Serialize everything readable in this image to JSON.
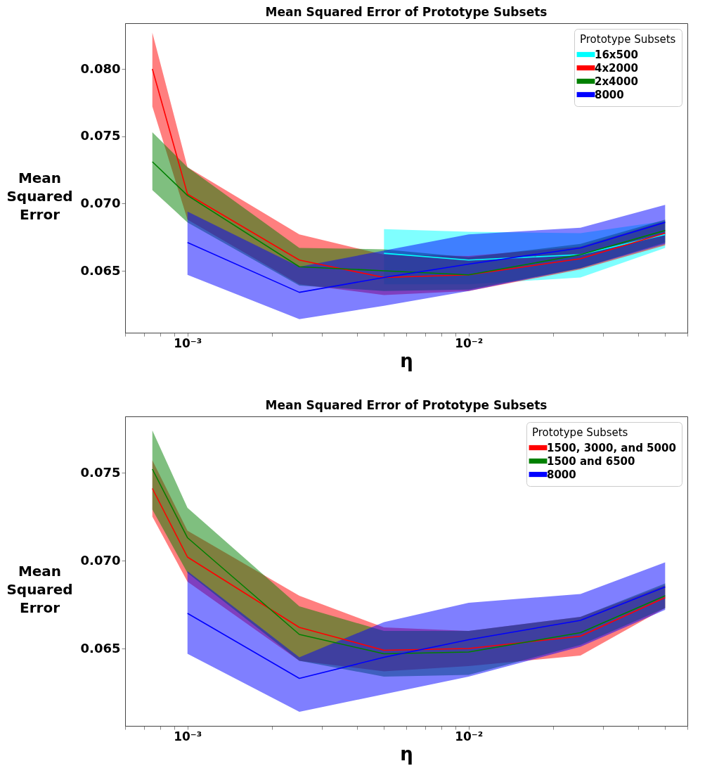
{
  "chart_data": [
    {
      "type": "line",
      "title": "Mean Squared Error of Prototype Subsets",
      "xlabel": "η",
      "ylabel": "Mean Squared Error",
      "legend_title": "Prototype Subsets",
      "legend": "top right",
      "log": "x",
      "grid": false,
      "xlim": [
        0.0006,
        0.06
      ],
      "ylim": [
        0.0604,
        0.0834
      ],
      "xticks": [
        {
          "value": 0.0006,
          "label": null
        },
        {
          "value": 0.0007,
          "label": null
        },
        {
          "value": 0.0008,
          "label": null
        },
        {
          "value": 0.0009,
          "label": null
        },
        {
          "value": 0.001,
          "label": "10⁻³"
        },
        {
          "value": 0.002,
          "label": null
        },
        {
          "value": 0.003,
          "label": null
        },
        {
          "value": 0.004,
          "label": null
        },
        {
          "value": 0.005,
          "label": null
        },
        {
          "value": 0.006,
          "label": null
        },
        {
          "value": 0.007,
          "label": null
        },
        {
          "value": 0.008,
          "label": null
        },
        {
          "value": 0.009,
          "label": null
        },
        {
          "value": 0.01,
          "label": "10⁻²"
        },
        {
          "value": 0.02,
          "label": null
        },
        {
          "value": 0.03,
          "label": null
        },
        {
          "value": 0.04,
          "label": null
        },
        {
          "value": 0.05,
          "label": null
        },
        {
          "value": 0.06,
          "label": null
        }
      ],
      "yticks": [
        {
          "value": 0.065,
          "label": "0.065"
        },
        {
          "value": 0.07,
          "label": "0.070"
        },
        {
          "value": 0.075,
          "label": "0.075"
        },
        {
          "value": 0.08,
          "label": "0.080"
        }
      ],
      "series": [
        {
          "name": "16x500",
          "color": "#00ffff",
          "x": [
            0.005,
            0.01,
            0.025,
            0.05
          ],
          "values": [
            0.0663,
            0.0658,
            0.0662,
            0.0677
          ],
          "lower": [
            0.064,
            0.064,
            0.0645,
            0.0667
          ],
          "upper": [
            0.0681,
            0.0679,
            0.0678,
            0.0687
          ]
        },
        {
          "name": "4x2000",
          "color": "#ff0000",
          "x": [
            0.00075,
            0.001,
            0.0025,
            0.005,
            0.01,
            0.025,
            0.05
          ],
          "values": [
            0.08,
            0.0707,
            0.0658,
            0.0645,
            0.0647,
            0.0659,
            0.0678
          ],
          "lower": [
            0.0772,
            0.0688,
            0.064,
            0.0632,
            0.0635,
            0.0651,
            0.0669
          ],
          "upper": [
            0.0827,
            0.0727,
            0.0677,
            0.0662,
            0.0661,
            0.0668,
            0.0687
          ]
        },
        {
          "name": "2x4000",
          "color": "#008000",
          "x": [
            0.00075,
            0.001,
            0.0025,
            0.005,
            0.01,
            0.025,
            0.05
          ],
          "values": [
            0.0731,
            0.0706,
            0.0653,
            0.065,
            0.0647,
            0.0662,
            0.068
          ],
          "lower": [
            0.071,
            0.0686,
            0.0639,
            0.0635,
            0.0636,
            0.0652,
            0.0671
          ],
          "upper": [
            0.0753,
            0.0727,
            0.0667,
            0.0666,
            0.066,
            0.067,
            0.0688
          ]
        },
        {
          "name": "8000",
          "color": "#0000ff",
          "x": [
            0.001,
            0.0025,
            0.005,
            0.01,
            0.025,
            0.05
          ],
          "values": [
            0.0671,
            0.0634,
            0.0645,
            0.0655,
            0.0667,
            0.0686
          ],
          "lower": [
            0.0647,
            0.0614,
            0.0624,
            0.0635,
            0.0652,
            0.067
          ],
          "upper": [
            0.0694,
            0.0653,
            0.0665,
            0.0677,
            0.0682,
            0.0699
          ]
        }
      ]
    },
    {
      "type": "line",
      "title": "Mean Squared Error of Prototype Subsets",
      "xlabel": "η",
      "ylabel": "Mean Squared Error",
      "legend_title": "Prototype Subsets",
      "legend": "top right",
      "log": "x",
      "grid": false,
      "xlim": [
        0.0006,
        0.06
      ],
      "ylim": [
        0.0606,
        0.0782
      ],
      "xticks": [
        {
          "value": 0.0006,
          "label": null
        },
        {
          "value": 0.0007,
          "label": null
        },
        {
          "value": 0.0008,
          "label": null
        },
        {
          "value": 0.0009,
          "label": null
        },
        {
          "value": 0.001,
          "label": "10⁻³"
        },
        {
          "value": 0.002,
          "label": null
        },
        {
          "value": 0.003,
          "label": null
        },
        {
          "value": 0.004,
          "label": null
        },
        {
          "value": 0.005,
          "label": null
        },
        {
          "value": 0.006,
          "label": null
        },
        {
          "value": 0.007,
          "label": null
        },
        {
          "value": 0.008,
          "label": null
        },
        {
          "value": 0.009,
          "label": null
        },
        {
          "value": 0.01,
          "label": "10⁻²"
        },
        {
          "value": 0.02,
          "label": null
        },
        {
          "value": 0.03,
          "label": null
        },
        {
          "value": 0.04,
          "label": null
        },
        {
          "value": 0.05,
          "label": null
        },
        {
          "value": 0.06,
          "label": null
        }
      ],
      "yticks": [
        {
          "value": 0.065,
          "label": "0.065"
        },
        {
          "value": 0.07,
          "label": "0.070"
        },
        {
          "value": 0.075,
          "label": "0.075"
        }
      ],
      "series": [
        {
          "name": "1500, 3000, and 5000",
          "color": "#ff0000",
          "x": [
            0.00075,
            0.001,
            0.0025,
            0.005,
            0.01,
            0.025,
            0.05
          ],
          "values": [
            0.0741,
            0.0702,
            0.0662,
            0.0649,
            0.065,
            0.0657,
            0.0679
          ],
          "lower": [
            0.0725,
            0.0688,
            0.0643,
            0.0637,
            0.064,
            0.0646,
            0.0673
          ],
          "upper": [
            0.0757,
            0.0717,
            0.068,
            0.0662,
            0.066,
            0.0668,
            0.0686
          ]
        },
        {
          "name": "1500 and 6500",
          "color": "#008000",
          "x": [
            0.00075,
            0.001,
            0.0025,
            0.005,
            0.01,
            0.025,
            0.05
          ],
          "values": [
            0.0752,
            0.0713,
            0.0658,
            0.0647,
            0.0648,
            0.0659,
            0.068
          ],
          "lower": [
            0.0729,
            0.0693,
            0.0643,
            0.0634,
            0.0635,
            0.0652,
            0.0673
          ],
          "upper": [
            0.0774,
            0.073,
            0.0674,
            0.066,
            0.066,
            0.0668,
            0.0687
          ]
        },
        {
          "name": "8000",
          "color": "#0000ff",
          "x": [
            0.001,
            0.0025,
            0.005,
            0.01,
            0.025,
            0.05
          ],
          "values": [
            0.067,
            0.0633,
            0.0645,
            0.0655,
            0.0666,
            0.0685
          ],
          "lower": [
            0.0647,
            0.0614,
            0.0624,
            0.0634,
            0.0651,
            0.0672
          ],
          "upper": [
            0.0694,
            0.0645,
            0.0665,
            0.0676,
            0.0681,
            0.0699
          ]
        }
      ]
    }
  ]
}
